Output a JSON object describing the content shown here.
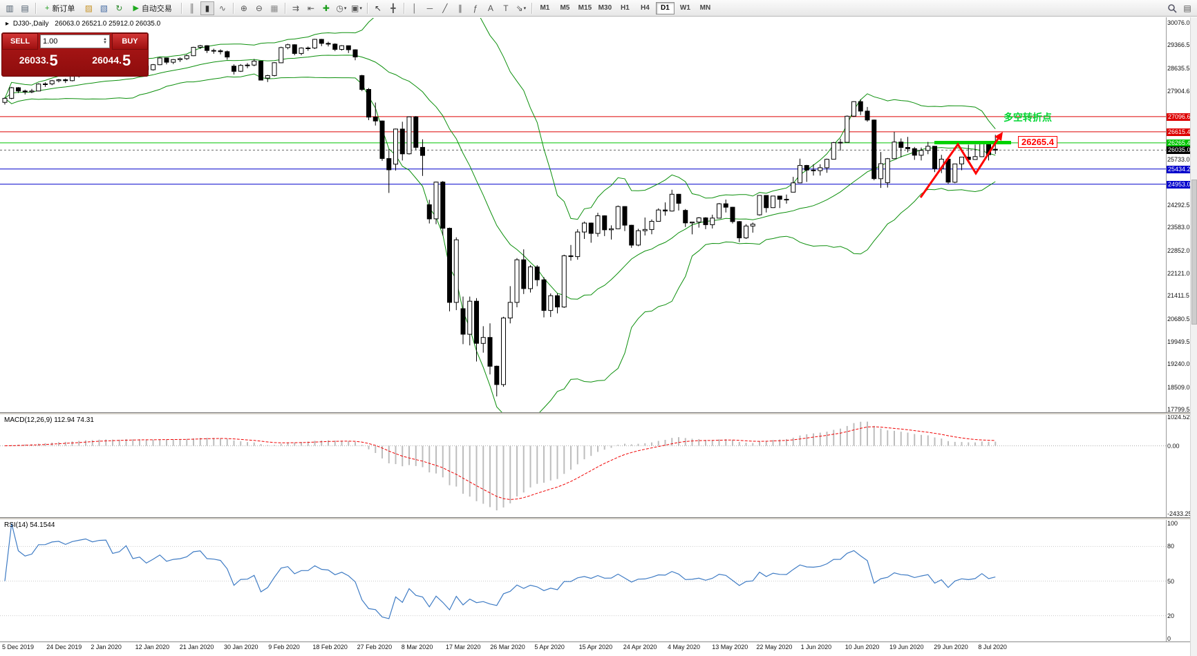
{
  "toolbar": {
    "caret_glyph": "▾",
    "items": [
      {
        "t": "i",
        "name": "new-chart-icon",
        "glyph": "▥",
        "color": "#4a5a6a"
      },
      {
        "t": "i",
        "name": "chart-profiles-icon",
        "glyph": "▤",
        "color": "#4a5a6a"
      },
      {
        "t": "s"
      },
      {
        "t": "b",
        "name": "new-order-button",
        "icon_name": "new-order-icon",
        "glyph": "+",
        "color": "#1d9e1d",
        "label": "新订单"
      },
      {
        "t": "i",
        "name": "market-watch-icon",
        "glyph": "▨",
        "color": "#c8952a"
      },
      {
        "t": "i",
        "name": "navigator-icon",
        "glyph": "▧",
        "color": "#4a6fa5"
      },
      {
        "t": "i",
        "name": "refresh-icon",
        "glyph": "↻",
        "color": "#2e8b2e"
      },
      {
        "t": "b",
        "name": "autotrading-button",
        "icon_name": "autotrading-play-icon",
        "glyph": "▶",
        "color": "#1faa1f",
        "label": "自动交易"
      },
      {
        "t": "s"
      },
      {
        "t": "i",
        "name": "bar-chart-icon",
        "glyph": "║",
        "color": "#666"
      },
      {
        "t": "i",
        "name": "candlestick-chart-icon",
        "glyph": "▮",
        "color": "#333",
        "active": true
      },
      {
        "t": "i",
        "name": "line-chart-icon",
        "glyph": "∿",
        "color": "#666"
      },
      {
        "t": "s"
      },
      {
        "t": "i",
        "name": "zoom-in-icon",
        "glyph": "⊕",
        "color": "#555"
      },
      {
        "t": "i",
        "name": "zoom-out-icon",
        "glyph": "⊖",
        "color": "#555"
      },
      {
        "t": "i",
        "name": "tile-windows-icon",
        "glyph": "▦",
        "color": "#8a8a8a"
      },
      {
        "t": "s"
      },
      {
        "t": "i",
        "name": "auto-scroll-icon",
        "glyph": "⇉",
        "color": "#555"
      },
      {
        "t": "i",
        "name": "chart-shift-icon",
        "glyph": "⇤",
        "color": "#555"
      },
      {
        "t": "i",
        "name": "indicators-icon",
        "glyph": "✚",
        "color": "#1d9e1d"
      },
      {
        "t": "i",
        "name": "periods-icon",
        "glyph": "◷",
        "color": "#555",
        "caret": true
      },
      {
        "t": "i",
        "name": "templates-icon",
        "glyph": "▣",
        "color": "#555",
        "caret": true
      },
      {
        "t": "s"
      },
      {
        "t": "i",
        "name": "cursor-icon",
        "glyph": "↖",
        "color": "#333"
      },
      {
        "t": "i",
        "name": "crosshair-icon",
        "glyph": "╋",
        "color": "#555"
      },
      {
        "t": "s"
      },
      {
        "t": "i",
        "name": "vertical-line-icon",
        "glyph": "│",
        "color": "#555"
      },
      {
        "t": "i",
        "name": "horizontal-line-icon",
        "glyph": "─",
        "color": "#555"
      },
      {
        "t": "i",
        "name": "trendline-icon",
        "glyph": "╱",
        "color": "#555"
      },
      {
        "t": "i",
        "name": "channel-icon",
        "glyph": "∥",
        "color": "#555"
      },
      {
        "t": "i",
        "name": "fibonacci-icon",
        "glyph": "ƒ",
        "color": "#555"
      },
      {
        "t": "i",
        "name": "text-icon",
        "glyph": "A",
        "color": "#555"
      },
      {
        "t": "i",
        "name": "text-label-icon",
        "glyph": "T",
        "color": "#555"
      },
      {
        "t": "i",
        "name": "arrows-icon",
        "glyph": "⇘",
        "color": "#555",
        "caret": true
      },
      {
        "t": "s"
      },
      {
        "t": "f",
        "name": "timeframe-m1-button",
        "label": "M1"
      },
      {
        "t": "f",
        "name": "timeframe-m5-button",
        "label": "M5"
      },
      {
        "t": "f",
        "name": "timeframe-m15-button",
        "label": "M15"
      },
      {
        "t": "f",
        "name": "timeframe-m30-button",
        "label": "M30"
      },
      {
        "t": "f",
        "name": "timeframe-h1-button",
        "label": "H1"
      },
      {
        "t": "f",
        "name": "timeframe-h4-button",
        "label": "H4"
      },
      {
        "t": "f",
        "name": "timeframe-d1-button",
        "label": "D1",
        "active": true
      },
      {
        "t": "f",
        "name": "timeframe-w1-button",
        "label": "W1"
      },
      {
        "t": "f",
        "name": "timeframe-mn-button",
        "label": "MN"
      },
      {
        "t": "x"
      },
      {
        "t": "i",
        "name": "search-icon",
        "svg": "magnifier"
      },
      {
        "t": "i",
        "name": "layout-icon",
        "glyph": "▤",
        "color": "#555"
      }
    ]
  },
  "chart_header": {
    "marker": "▸",
    "symbol": "DJ30-,Daily",
    "ohlc": "26063.0 26521.0 25912.0 26035.0"
  },
  "trade_panel": {
    "sell_label": "SELL",
    "buy_label": "BUY",
    "volume": "1.00",
    "spinner_up": "▲",
    "spinner_down": "▼",
    "sell_price_main": "26033.",
    "sell_price_big": "5",
    "buy_price_main": "26044.",
    "buy_price_big": "5"
  },
  "annotations": {
    "turning_point_text": "多空转折点",
    "price_label": "26265.4"
  },
  "indicators": {
    "macd_header": "MACD(12,26,9) 112.94 74.31",
    "rsi_header": "RSI(14) 54.1544",
    "macd_axis": [
      {
        "label": "1024.52",
        "value": 1024.52
      },
      {
        "label": "0.00",
        "value": 0
      },
      {
        "label": "-2433.25",
        "value": -2433.25
      }
    ],
    "rsi_axis": [
      {
        "label": "100",
        "value": 100
      },
      {
        "label": "80",
        "value": 80
      },
      {
        "label": "50",
        "value": 50
      },
      {
        "label": "20",
        "value": 20
      },
      {
        "label": "0",
        "value": 0
      }
    ]
  },
  "chart_data": {
    "type": "candlestick",
    "symbol": "DJ30-",
    "timeframe": "Daily",
    "y_ticks": [
      {
        "label": "30076.0",
        "value": 30076.0
      },
      {
        "label": "29366.5",
        "value": 29366.5
      },
      {
        "label": "28635.5",
        "value": 28635.5
      },
      {
        "label": "27904.6",
        "value": 27904.6
      },
      {
        "label": "25733.0",
        "value": 25733.0
      },
      {
        "label": "24292.5",
        "value": 24292.5
      },
      {
        "label": "23583.0",
        "value": 23583.0
      },
      {
        "label": "22852.0",
        "value": 22852.0
      },
      {
        "label": "22121.0",
        "value": 22121.0
      },
      {
        "label": "21411.5",
        "value": 21411.5
      },
      {
        "label": "20680.5",
        "value": 20680.5
      },
      {
        "label": "19949.5",
        "value": 19949.5
      },
      {
        "label": "19240.0",
        "value": 19240.0
      },
      {
        "label": "18509.0",
        "value": 18509.0
      },
      {
        "label": "17799.5",
        "value": 17799.5
      }
    ],
    "price_levels": [
      {
        "label": "27096.6",
        "value": 27096.6,
        "color": "#dd0000",
        "type": "resistance"
      },
      {
        "label": "26615.4",
        "value": 26615.4,
        "color": "#dd0000",
        "type": "resistance"
      },
      {
        "label": "26265.4",
        "value": 26265.4,
        "color": "#00c400",
        "type": "pivot"
      },
      {
        "label": "25434.2",
        "value": 25434.2,
        "color": "#0000cc",
        "type": "support"
      },
      {
        "label": "24953.0",
        "value": 24953.0,
        "color": "#0000cc",
        "type": "support"
      }
    ],
    "current_price": {
      "label": "26035.0",
      "value": 26035.0,
      "color": "#000000"
    },
    "x_axis_labels": [
      "5 Dec 2019",
      "24 Dec 2019",
      "2 Jan 2020",
      "12 Jan 2020",
      "21 Jan 2020",
      "30 Jan 2020",
      "9 Feb 2020",
      "18 Feb 2020",
      "27 Feb 2020",
      "8 Mar 2020",
      "17 Mar 2020",
      "26 Mar 2020",
      "5 Apr 2020",
      "15 Apr 2020",
      "24 Apr 2020",
      "4 May 2020",
      "13 May 2020",
      "22 May 2020",
      "1 Jun 2020",
      "10 Jun 2020",
      "19 Jun 2020",
      "29 Jun 2020",
      "8 Jul 2020"
    ],
    "candles": [
      [
        27550,
        27710,
        27480,
        27677
      ],
      [
        27677,
        28040,
        27650,
        28015
      ],
      [
        28015,
        28035,
        27845,
        27910
      ],
      [
        27910,
        27955,
        27800,
        27882
      ],
      [
        27882,
        27975,
        27840,
        27911
      ],
      [
        27911,
        28155,
        27900,
        28132
      ],
      [
        28132,
        28185,
        28045,
        28135
      ],
      [
        28135,
        28260,
        28095,
        28236
      ],
      [
        28236,
        28295,
        28185,
        28267
      ],
      [
        28267,
        28305,
        28165,
        28239
      ],
      [
        28239,
        28405,
        28220,
        28377
      ],
      [
        28377,
        28475,
        28340,
        28455
      ],
      [
        28455,
        28585,
        28430,
        28551
      ],
      [
        28551,
        28575,
        28455,
        28515
      ],
      [
        28515,
        28645,
        28500,
        28621
      ],
      [
        28621,
        28675,
        28580,
        28645
      ],
      [
        28645,
        28665,
        28415,
        28462
      ],
      [
        28462,
        28565,
        28430,
        28538
      ],
      [
        28640,
        28895,
        28620,
        28869
      ],
      [
        28869,
        28885,
        28555,
        28635
      ],
      [
        28635,
        28725,
        28540,
        28704
      ],
      [
        28704,
        28755,
        28515,
        28584
      ],
      [
        28584,
        28765,
        28560,
        28745
      ],
      [
        28745,
        28985,
        28730,
        28957
      ],
      [
        28957,
        28965,
        28755,
        28824
      ],
      [
        28824,
        28925,
        28765,
        28907
      ],
      [
        28907,
        28975,
        28835,
        28939
      ],
      [
        28939,
        29065,
        28895,
        29030
      ],
      [
        29030,
        29315,
        29020,
        29298
      ],
      [
        29298,
        29374,
        29245,
        29348
      ],
      [
        29348,
        29365,
        29115,
        29196
      ],
      [
        29196,
        29255,
        29095,
        29186
      ],
      [
        29186,
        29235,
        29075,
        29160
      ],
      [
        29160,
        29195,
        28905,
        28990
      ],
      [
        28700,
        28755,
        28435,
        28536
      ],
      [
        28536,
        28765,
        28515,
        28723
      ],
      [
        28723,
        28795,
        28635,
        28734
      ],
      [
        28734,
        28925,
        28695,
        28859
      ],
      [
        28859,
        28865,
        28245,
        28256
      ],
      [
        28320,
        28425,
        28195,
        28400
      ],
      [
        28400,
        28825,
        28375,
        28808
      ],
      [
        28808,
        29315,
        28795,
        29290
      ],
      [
        29290,
        29409,
        29235,
        29380
      ],
      [
        29380,
        29395,
        29045,
        29103
      ],
      [
        29103,
        29295,
        29045,
        29277
      ],
      [
        29277,
        29325,
        29185,
        29276
      ],
      [
        29276,
        29568,
        29245,
        29551
      ],
      [
        29551,
        29565,
        29335,
        29423
      ],
      [
        29423,
        29475,
        29325,
        29398
      ],
      [
        29398,
        29425,
        29175,
        29232
      ],
      [
        29232,
        29365,
        29195,
        29348
      ],
      [
        29348,
        29355,
        29115,
        29220
      ],
      [
        29220,
        29235,
        28885,
        28992
      ],
      [
        28400,
        28425,
        27905,
        27961
      ],
      [
        27961,
        28005,
        26985,
        27081
      ],
      [
        27081,
        27545,
        26815,
        26958
      ],
      [
        26958,
        26975,
        25695,
        25767
      ],
      [
        25767,
        26065,
        24675,
        25409
      ],
      [
        25590,
        26715,
        25385,
        26703
      ],
      [
        26703,
        26935,
        25705,
        25917
      ],
      [
        25917,
        27105,
        25895,
        27090
      ],
      [
        27090,
        27115,
        26045,
        26121
      ],
      [
        26121,
        26375,
        25215,
        25865
      ],
      [
        24300,
        24455,
        23705,
        23851
      ],
      [
        23851,
        25035,
        23685,
        25018
      ],
      [
        25018,
        25055,
        23325,
        23553
      ],
      [
        23553,
        23575,
        20915,
        21200
      ],
      [
        21200,
        23265,
        20955,
        23186
      ],
      [
        21000,
        21385,
        19875,
        20188
      ],
      [
        20188,
        21385,
        19835,
        21237
      ],
      [
        21237,
        21335,
        19325,
        19899
      ],
      [
        19899,
        20445,
        19605,
        20087
      ],
      [
        20087,
        20535,
        18915,
        19174
      ],
      [
        19174,
        19195,
        18215,
        18592
      ],
      [
        18592,
        20745,
        18525,
        20705
      ],
      [
        20705,
        21715,
        20535,
        21200
      ],
      [
        21200,
        22605,
        21045,
        22552
      ],
      [
        22552,
        22885,
        21465,
        21637
      ],
      [
        21637,
        22385,
        21515,
        22327
      ],
      [
        22327,
        22385,
        21715,
        21917
      ],
      [
        21917,
        22005,
        20725,
        20944
      ],
      [
        20944,
        21485,
        20735,
        21413
      ],
      [
        21413,
        21485,
        20855,
        21053
      ],
      [
        21053,
        22715,
        21025,
        22680
      ],
      [
        22680,
        23025,
        22525,
        22654
      ],
      [
        22654,
        23525,
        22555,
        23434
      ],
      [
        23434,
        23765,
        23215,
        23719
      ],
      [
        23719,
        23735,
        23095,
        23390
      ],
      [
        23390,
        24045,
        23285,
        23950
      ],
      [
        23950,
        23965,
        23305,
        23504
      ],
      [
        23504,
        23645,
        23195,
        23537
      ],
      [
        23537,
        24275,
        23525,
        24242
      ],
      [
        24242,
        24255,
        23465,
        23650
      ],
      [
        23650,
        23665,
        22935,
        23019
      ],
      [
        23019,
        23535,
        22985,
        23476
      ],
      [
        23476,
        23895,
        23325,
        23515
      ],
      [
        23515,
        23835,
        23365,
        23775
      ],
      [
        23775,
        24185,
        23765,
        24134
      ],
      [
        24134,
        24375,
        23955,
        24102
      ],
      [
        24102,
        24775,
        24085,
        24634
      ],
      [
        24634,
        24645,
        24115,
        24346
      ],
      [
        24120,
        24165,
        23595,
        23724
      ],
      [
        23724,
        23755,
        23360,
        23750
      ],
      [
        23750,
        23905,
        23575,
        23883
      ],
      [
        23883,
        23905,
        23525,
        23665
      ],
      [
        23665,
        23985,
        23545,
        23876
      ],
      [
        23876,
        24355,
        23865,
        24331
      ],
      [
        24331,
        24465,
        24055,
        24222
      ],
      [
        24222,
        24235,
        23705,
        23765
      ],
      [
        23765,
        23785,
        23115,
        23248
      ],
      [
        23248,
        23685,
        23215,
        23625
      ],
      [
        23625,
        23735,
        23415,
        23685
      ],
      [
        23980,
        24605,
        23955,
        24597
      ],
      [
        24597,
        24605,
        24055,
        24207
      ],
      [
        24207,
        24585,
        24195,
        24576
      ],
      [
        24576,
        24585,
        24195,
        24474
      ],
      [
        24474,
        24625,
        24335,
        24465
      ],
      [
        24700,
        25185,
        24695,
        24995
      ],
      [
        24995,
        25765,
        24985,
        25548
      ],
      [
        25548,
        25565,
        25025,
        25401
      ],
      [
        25401,
        25585,
        25225,
        25383
      ],
      [
        25383,
        25585,
        25225,
        25475
      ],
      [
        25475,
        25765,
        25315,
        25743
      ],
      [
        25743,
        26295,
        25735,
        26270
      ],
      [
        26270,
        26395,
        26015,
        26282
      ],
      [
        26282,
        27135,
        26275,
        27111
      ],
      [
        27111,
        27585,
        27085,
        27572
      ],
      [
        27572,
        27645,
        27145,
        27272
      ],
      [
        27272,
        27405,
        26935,
        26990
      ],
      [
        26990,
        27005,
        25075,
        25128
      ],
      [
        25128,
        25975,
        24835,
        25605
      ],
      [
        25000,
        25785,
        24845,
        25763
      ],
      [
        25763,
        26615,
        25755,
        26290
      ],
      [
        26290,
        26405,
        25805,
        26120
      ],
      [
        26120,
        26455,
        25965,
        26080
      ],
      [
        26080,
        26135,
        25725,
        25871
      ],
      [
        25871,
        26115,
        25705,
        26025
      ],
      [
        26025,
        26295,
        25905,
        26156
      ],
      [
        26156,
        26165,
        25335,
        25446
      ],
      [
        25446,
        25885,
        25305,
        25746
      ],
      [
        25746,
        25755,
        24965,
        25016
      ],
      [
        25016,
        25605,
        24985,
        25596
      ],
      [
        25596,
        25765,
        25395,
        25813
      ],
      [
        25813,
        26205,
        25695,
        25735
      ],
      [
        25735,
        26210,
        25725,
        25827
      ],
      [
        25827,
        26315,
        25815,
        26287
      ],
      [
        26287,
        26295,
        25705,
        25890
      ],
      [
        26063,
        26521,
        25912,
        26035
      ]
    ]
  }
}
